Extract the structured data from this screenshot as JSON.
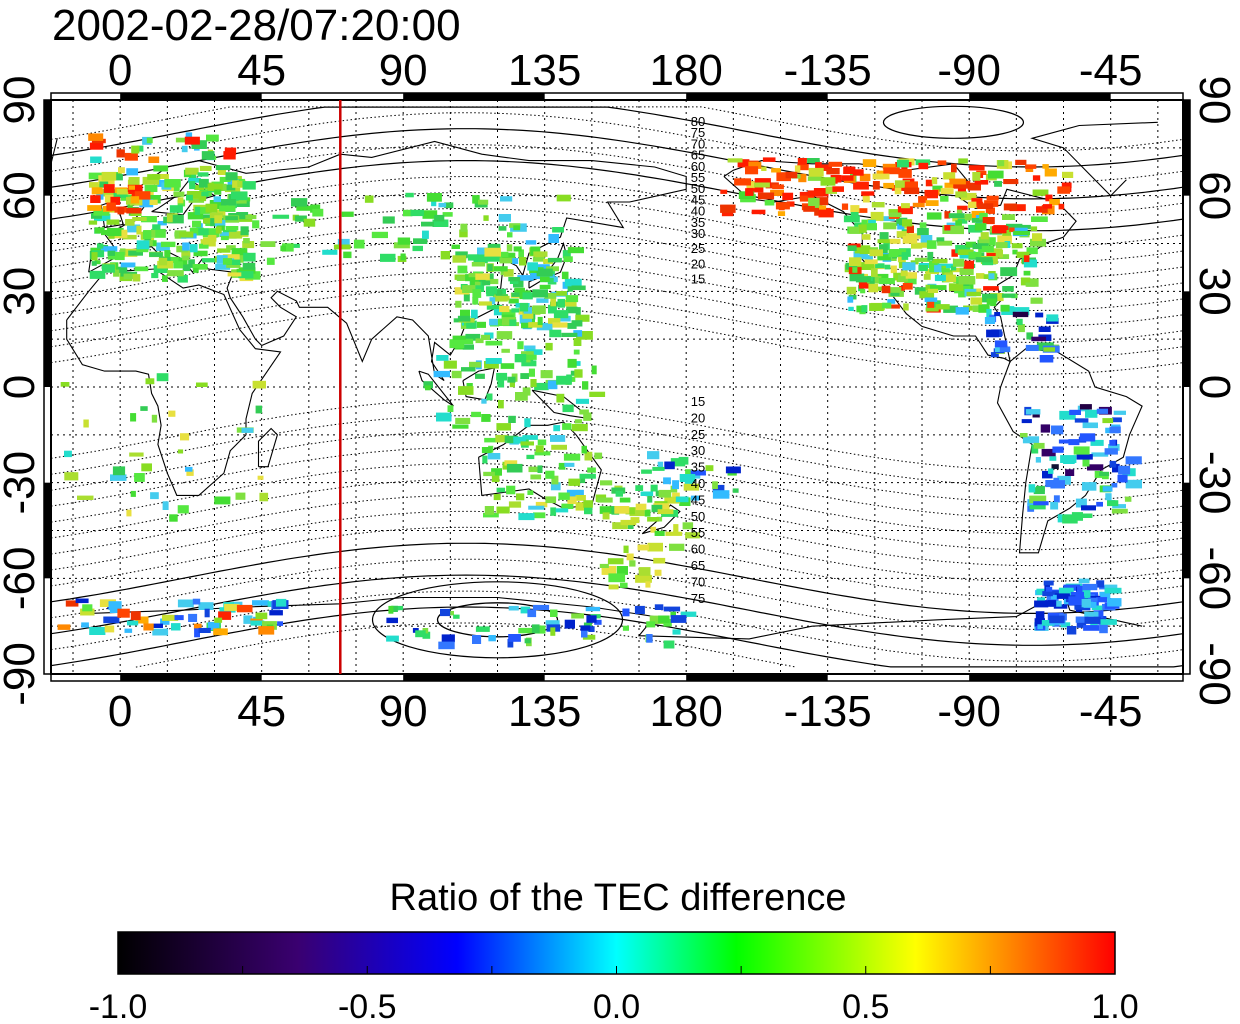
{
  "timestamp": "2002-02-28/07:20:00",
  "map": {
    "lon_tick_labels": [
      "0",
      "45",
      "90",
      "135",
      "180",
      "-135",
      "-90",
      "-45"
    ],
    "lat_tick_labels_left": [
      "90",
      "60",
      "30",
      "0",
      "-30",
      "-60",
      "-90"
    ],
    "lat_tick_labels_right": [
      "90",
      "60",
      "30",
      "0",
      "-30",
      "-60",
      "-90"
    ],
    "marker_line_longitude": 70,
    "marker_line_color": "#cc0000",
    "contour_labels_north": [
      "80",
      "75",
      "70",
      "65",
      "60",
      "55",
      "50",
      "45",
      "40",
      "35",
      "30",
      "25",
      "20",
      "15"
    ],
    "contour_labels_south": [
      "15",
      "20",
      "25",
      "30",
      "35",
      "40",
      "45",
      "50",
      "55",
      "60",
      "65",
      "70",
      "75"
    ]
  },
  "colorbar": {
    "title": "Ratio of the TEC difference",
    "tick_labels": [
      "-1.0",
      "-0.5",
      "0.0",
      "0.5",
      "1.0"
    ],
    "min": -1.0,
    "max": 1.0,
    "colors": [
      "#000000",
      "#3a0070",
      "#0000ff",
      "#00ffff",
      "#00ff00",
      "#ffff00",
      "#ff0000"
    ]
  }
}
